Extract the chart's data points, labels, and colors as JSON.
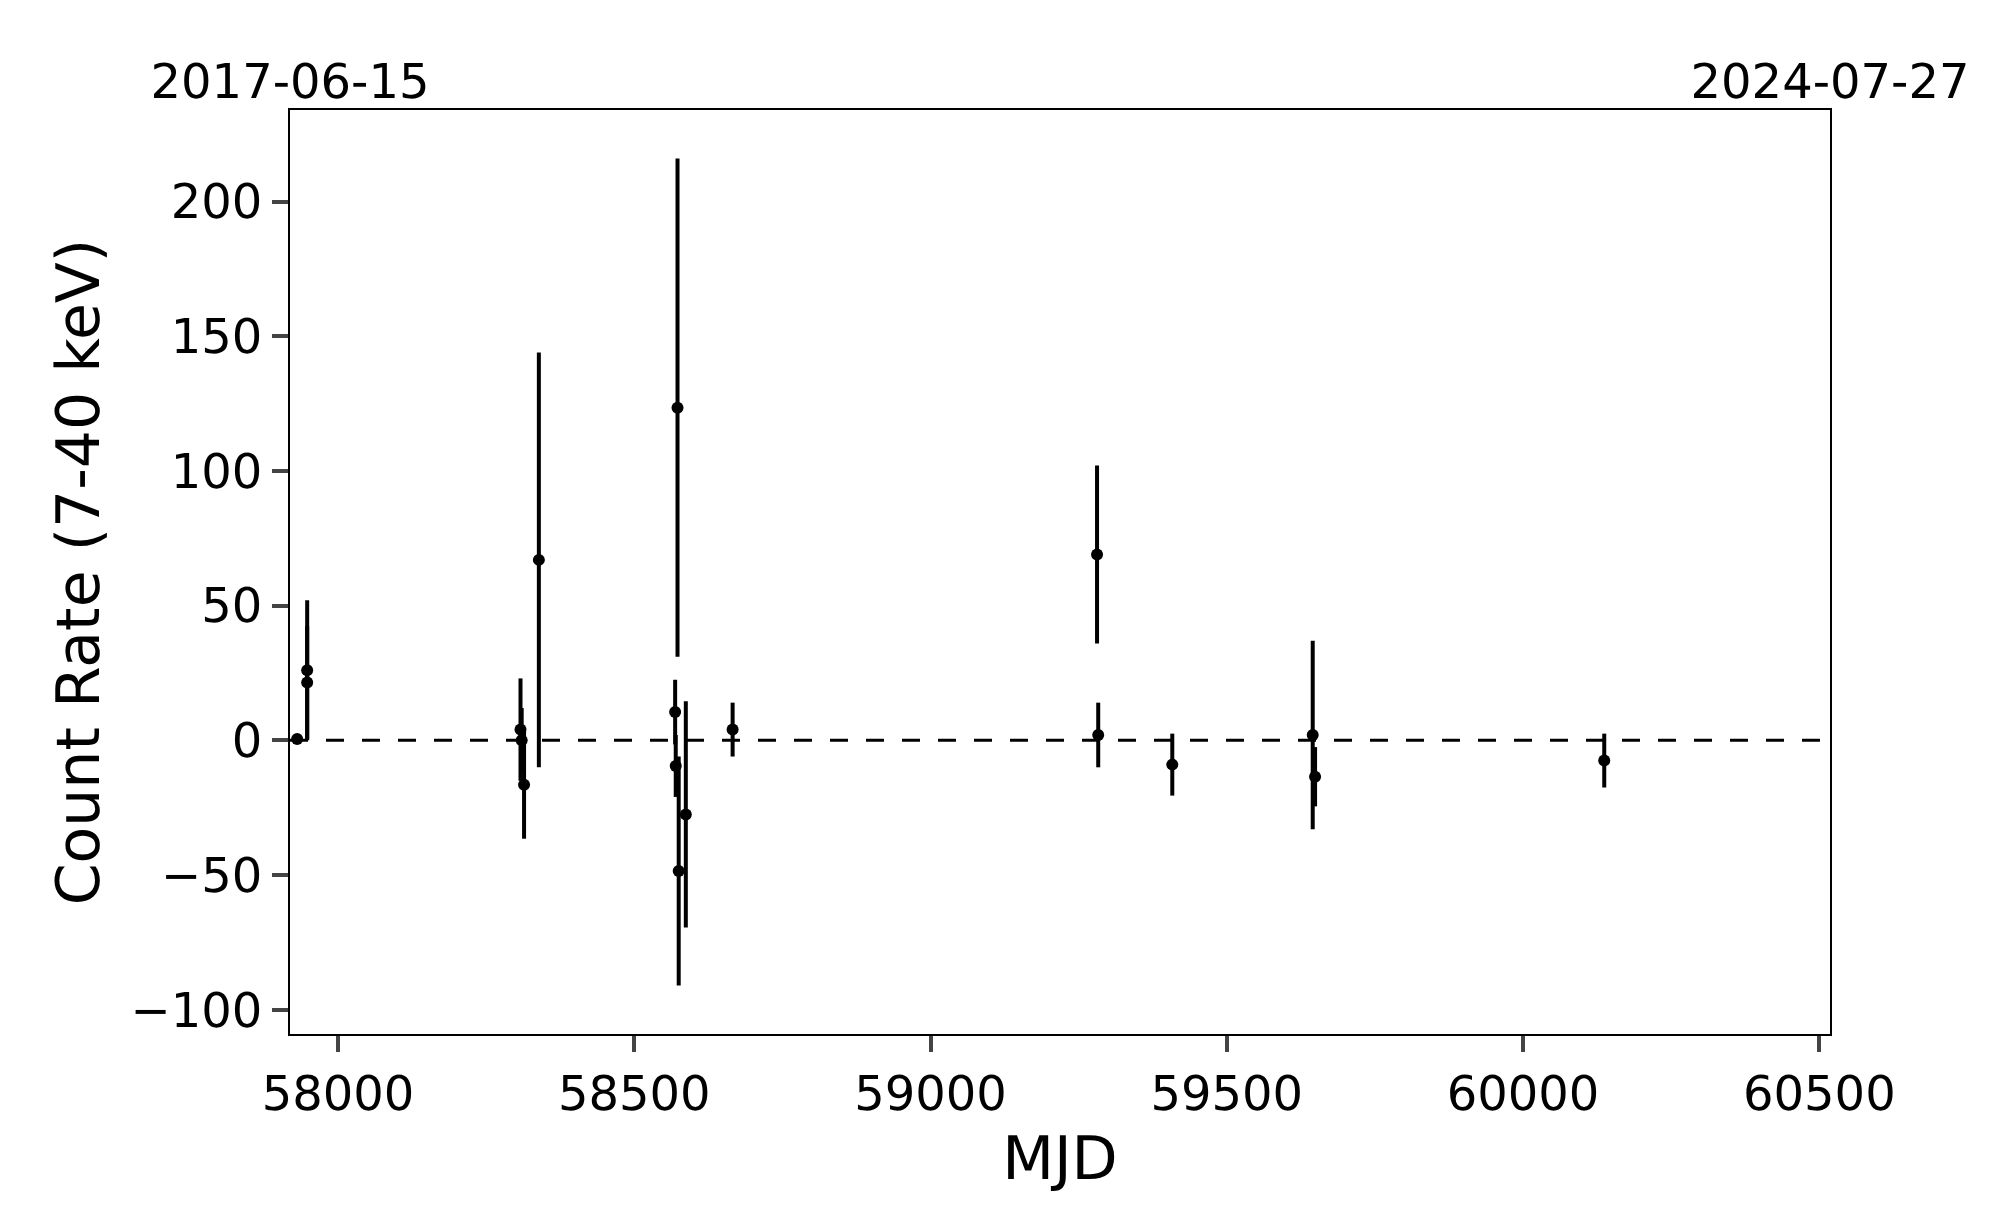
{
  "chart_data": {
    "type": "scatter",
    "xlabel": "MJD",
    "ylabel": "Count Rate (7-40 keV)",
    "x": [
      57931,
      57948,
      57948,
      58308,
      58310,
      58314,
      58339,
      58569,
      58570,
      58573,
      58575,
      58587,
      58666,
      59281,
      59283,
      59408,
      59645,
      59649,
      60137
    ],
    "values": [
      0.5,
      26,
      21.5,
      4,
      0,
      -16.5,
      67,
      10.5,
      -9.5,
      123.5,
      -48.5,
      -27.5,
      4,
      69,
      2,
      -9,
      2,
      -13.5,
      -7.5
    ],
    "errors": [
      1,
      26,
      21,
      19,
      12,
      20,
      77,
      12,
      11.5,
      92.5,
      42.5,
      42,
      10,
      33,
      12,
      11.5,
      35,
      11,
      10
    ],
    "color": "#000000",
    "marker": "circle",
    "xlim": [
      57919,
      60518
    ],
    "xticks": [
      58000,
      58500,
      59000,
      59500,
      60000,
      60500
    ],
    "ylim": [
      -109,
      234
    ],
    "yticks": [
      -100,
      -50,
      0,
      50,
      100,
      150,
      200
    ],
    "x2lim": [
      "2017-06-15",
      "2024-07-27"
    ],
    "x2ticks": [
      "2017-06-15",
      "2024-07-27"
    ],
    "ref_lines": [
      {
        "axis": "y",
        "value": 0,
        "color": "#000000",
        "line_style": "dashed"
      }
    ],
    "legend": false
  }
}
